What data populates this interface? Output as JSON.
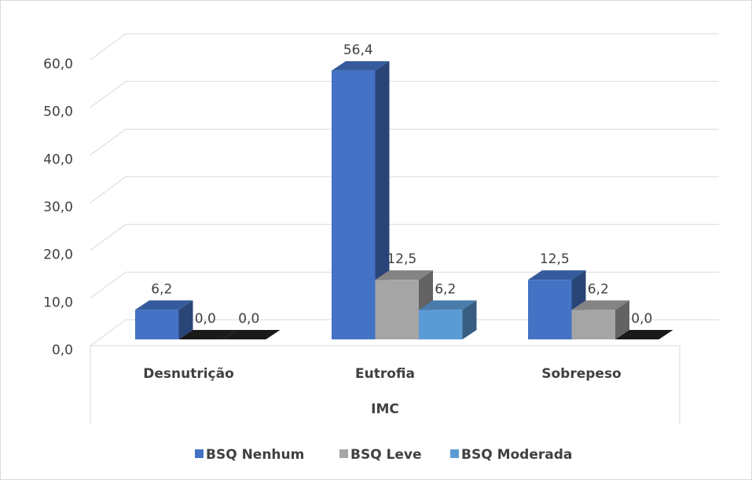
{
  "chart_data": {
    "type": "bar3d",
    "x_label": "IMC",
    "categories": [
      "Desnutrição",
      "Eutrofia",
      "Sobrepeso"
    ],
    "series": [
      {
        "name": "BSQ Nenhum",
        "color": "#4472c4",
        "values": [
          6.2,
          56.4,
          12.5
        ],
        "value_labels": [
          "6,2",
          "56,4",
          "12,5"
        ]
      },
      {
        "name": "BSQ Leve",
        "color": "#a5a5a5",
        "values": [
          0.0,
          12.5,
          6.2
        ],
        "value_labels": [
          "0,0",
          "12,5",
          "6,2"
        ]
      },
      {
        "name": "BSQ Moderada",
        "color": "#5b9bd5",
        "values": [
          0.0,
          6.2,
          0.0
        ],
        "value_labels": [
          "0,0",
          "6,2",
          "0,0"
        ]
      }
    ],
    "ylim": [
      0,
      60
    ],
    "yticks": [
      {
        "value": 0,
        "label": "0,0"
      },
      {
        "value": 10,
        "label": "10,0"
      },
      {
        "value": 20,
        "label": "20,0"
      },
      {
        "value": 30,
        "label": "30,0"
      },
      {
        "value": 40,
        "label": "40,0"
      },
      {
        "value": 50,
        "label": "50,0"
      },
      {
        "value": 60,
        "label": "60,0"
      }
    ],
    "grid": true,
    "legend": "bottom"
  }
}
